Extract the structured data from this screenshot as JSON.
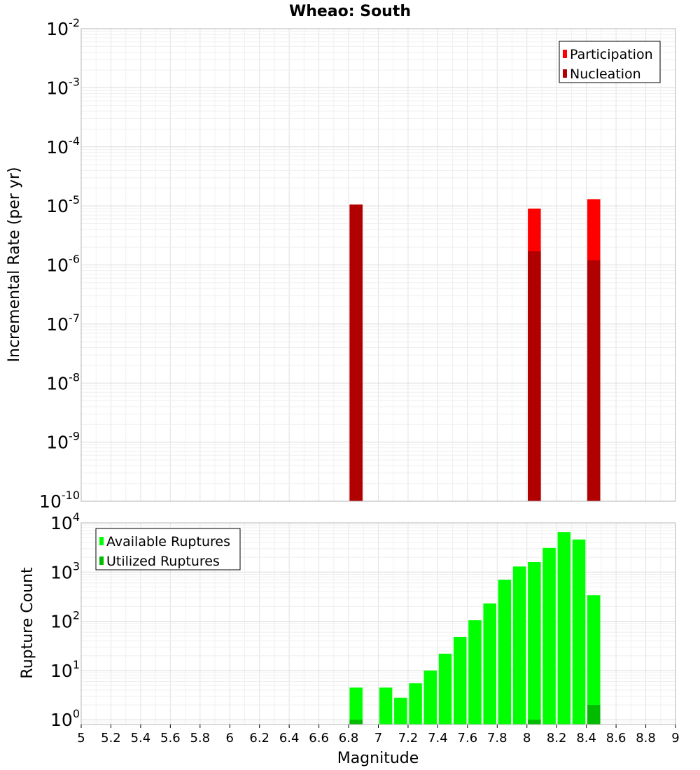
{
  "chart_data": [
    {
      "type": "bar",
      "title": "Wheao: South",
      "xlabel": "",
      "ylabel": "Incremental Rate (per yr)",
      "xlim": [
        5,
        9
      ],
      "ylim": [
        1e-10,
        0.01
      ],
      "yscale": "log",
      "ytick_exponents": [
        "-2",
        "-3",
        "-4",
        "-5",
        "-6",
        "-7",
        "-8",
        "-9",
        "-10"
      ],
      "ytick_base": "10",
      "grid": true,
      "legend_position": "top-right",
      "series": [
        {
          "name": "Participation",
          "color": "#ff0000",
          "x": [
            6.85,
            8.05,
            8.45
          ],
          "values": [
            1.05e-05,
            9e-06,
            1.3e-05
          ]
        },
        {
          "name": "Nucleation",
          "color": "#b00000",
          "x": [
            6.85,
            8.05,
            8.45
          ],
          "values": [
            1.05e-05,
            1.7e-06,
            1.2e-06
          ]
        }
      ]
    },
    {
      "type": "bar",
      "title": "",
      "xlabel": "Magnitude",
      "ylabel": "Rupture Count",
      "xlim": [
        5,
        9
      ],
      "ylim": [
        0.8,
        10000
      ],
      "yscale": "log",
      "ytick_exponents": [
        "0",
        "1",
        "2",
        "3",
        "4"
      ],
      "ytick_base": "10",
      "xticks": [
        "5",
        "5.2",
        "5.4",
        "5.6",
        "5.8",
        "6",
        "6.2",
        "6.4",
        "6.6",
        "6.8",
        "7",
        "7.2",
        "7.4",
        "7.6",
        "7.8",
        "8",
        "8.2",
        "8.4",
        "8.6",
        "8.8",
        "9"
      ],
      "grid": true,
      "legend_position": "top-left",
      "series": [
        {
          "name": "Available Ruptures",
          "color": "#00ff00",
          "x": [
            6.85,
            7.05,
            7.15,
            7.25,
            7.35,
            7.45,
            7.55,
            7.65,
            7.75,
            7.85,
            7.95,
            8.05,
            8.15,
            8.25,
            8.35,
            8.45
          ],
          "values": [
            4.5,
            4.5,
            2.8,
            5.5,
            10,
            22,
            48,
            105,
            230,
            700,
            1300,
            1600,
            3100,
            6500,
            4600,
            340
          ]
        },
        {
          "name": "Utilized Ruptures",
          "color": "#00bb00",
          "x": [
            6.85,
            8.05,
            8.45
          ],
          "values": [
            1,
            1,
            2
          ]
        }
      ]
    }
  ]
}
